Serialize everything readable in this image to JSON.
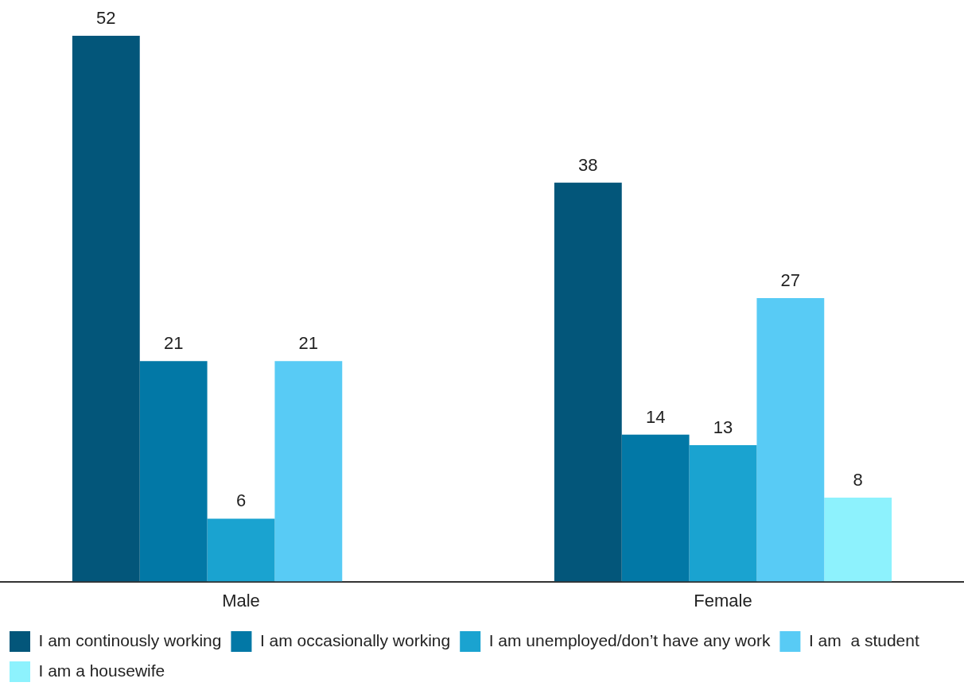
{
  "chart_data": {
    "type": "bar",
    "categories": [
      "Male",
      "Female"
    ],
    "series": [
      {
        "name": "I am continously working",
        "color": "#03567a",
        "values": [
          52,
          38
        ]
      },
      {
        "name": "I am occasionally working",
        "color": "#0278a6",
        "values": [
          21,
          14
        ]
      },
      {
        "name": "I am unemployed/don’t have any work",
        "color": "#1aa3d0",
        "values": [
          6,
          13
        ]
      },
      {
        "name": "I am  a student",
        "color": "#58cbf5",
        "values": [
          21,
          27
        ]
      },
      {
        "name": "I am a housewife",
        "color": "#8df2fd",
        "values": [
          null,
          8
        ]
      }
    ],
    "data_labels": true,
    "grid": false,
    "legend": "bottom"
  }
}
